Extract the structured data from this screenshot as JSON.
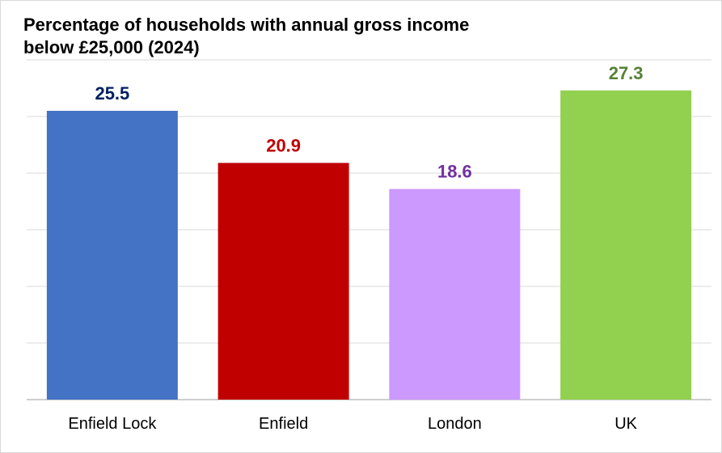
{
  "chart_data": {
    "type": "bar",
    "title_lines": [
      "Percentage of households with annual gross income",
      "below £25,000 (2024)"
    ],
    "categories": [
      "Enfield Lock",
      "Enfield",
      "London",
      "UK"
    ],
    "values": [
      25.5,
      20.9,
      18.6,
      27.3
    ],
    "data_labels": [
      "25.5",
      "20.9",
      "18.6",
      "27.3"
    ],
    "colors": [
      "#4472c4",
      "#c00000",
      "#cc99ff",
      "#92d050"
    ],
    "label_colors": [
      "#002060",
      "#c00000",
      "#7030a0",
      "#548235"
    ],
    "ylim": [
      0,
      30
    ],
    "y_gridline_step": 5,
    "grid": true,
    "legend": "none"
  }
}
